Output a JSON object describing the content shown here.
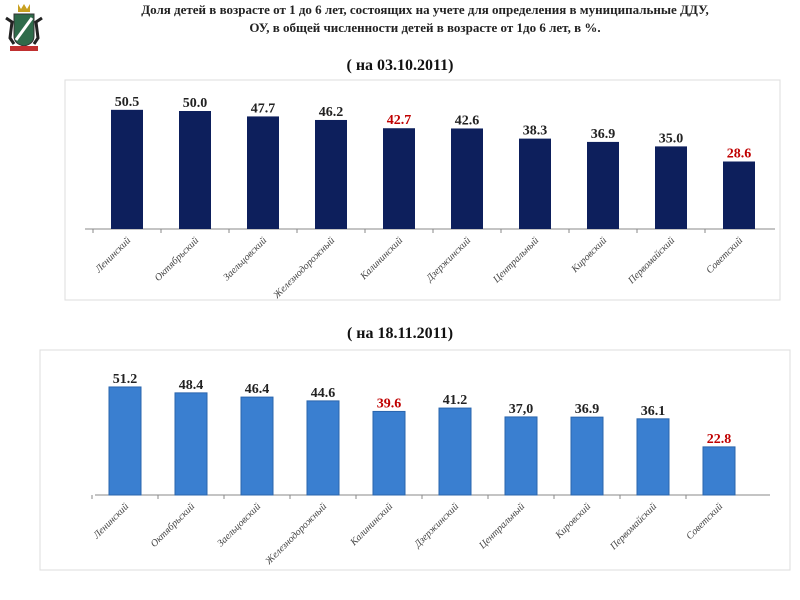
{
  "header": {
    "line1": "Доля детей в возрасте от 1 до 6 лет, состоящих на учете для определения в муниципальные ДДУ,",
    "line2": "ОУ, в общей численности детей в возрасте от 1до 6 лет, в %."
  },
  "chart_data": [
    {
      "type": "bar",
      "title": "( на 03.10.2011)",
      "categories": [
        "Ленинский",
        "Октябрьский",
        "Заельцовский",
        "Железнодорожный",
        "Калининский",
        "Дзержинский",
        "Центральный",
        "Кировский",
        "Первомайский",
        "Советский"
      ],
      "values": [
        50.5,
        50.0,
        47.7,
        46.2,
        42.7,
        42.6,
        38.3,
        36.9,
        35.0,
        28.6
      ],
      "labels": [
        "50.5",
        "50.0",
        "47.7",
        "46.2",
        "42.7",
        "42.6",
        "38.3",
        "36.9",
        "35.0",
        "28.6"
      ],
      "highlight": [
        4,
        9
      ],
      "bar_color": "#0d1f5c",
      "highlight_color": "#c00000",
      "ylim": [
        0,
        55
      ]
    },
    {
      "type": "bar",
      "title": "( на 18.11.2011)",
      "categories": [
        "Ленинский",
        "Октябрьский",
        "Заельцовский",
        "Железнодорожный",
        "Калининский",
        "Дзержинский",
        "Центральный",
        "Кировский",
        "Первомайский",
        "Советский"
      ],
      "values": [
        51.2,
        48.4,
        46.4,
        44.6,
        39.6,
        41.2,
        37.0,
        36.9,
        36.1,
        22.8
      ],
      "labels": [
        "51.2",
        "48.4",
        "46.4",
        "44.6",
        "39.6",
        "41.2",
        "37,0",
        "36.9",
        "36.1",
        "22.8"
      ],
      "highlight": [
        4,
        9
      ],
      "bar_color": "#3a7fd0",
      "highlight_color": "#c00000",
      "ylim": [
        0,
        55
      ]
    }
  ]
}
